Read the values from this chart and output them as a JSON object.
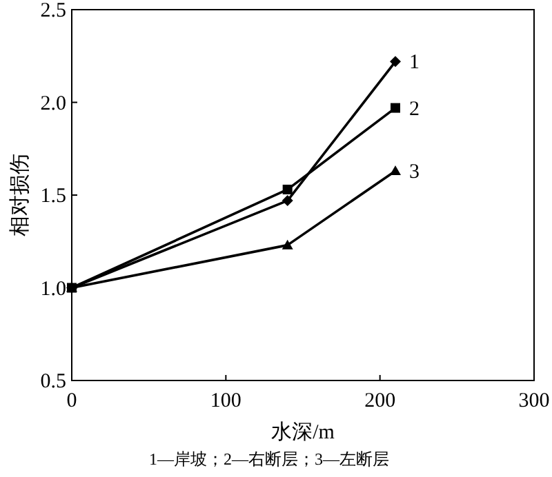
{
  "chart_data": {
    "type": "line",
    "xlabel": "水深/m",
    "ylabel": "相对损伤",
    "xlim": [
      0,
      300
    ],
    "xticks": [
      0,
      100,
      200,
      300
    ],
    "ylim": [
      0.5,
      2.5
    ],
    "yticks": [
      {
        "value": 0.5,
        "label": "0.5"
      },
      {
        "value": 1.0,
        "label": "1.0"
      },
      {
        "value": 1.5,
        "label": "1.5"
      },
      {
        "value": 2.0,
        "label": "2.0"
      },
      {
        "value": 2.5,
        "label": "2.5"
      }
    ],
    "grid": false,
    "line_style": "solid",
    "series": [
      {
        "name": "1",
        "color": "#000000",
        "marker": "diamond",
        "x": [
          0,
          140,
          210
        ],
        "values": [
          1.0,
          1.47,
          2.22
        ]
      },
      {
        "name": "2",
        "color": "#000000",
        "marker": "square",
        "x": [
          0,
          140,
          210
        ],
        "values": [
          1.0,
          1.53,
          1.97
        ]
      },
      {
        "name": "3",
        "color": "#000000",
        "marker": "triangle",
        "x": [
          0,
          140,
          210
        ],
        "values": [
          1.0,
          1.23,
          1.63
        ]
      }
    ],
    "annotations": [
      "1—岸坡；2—右断层；3—左断层"
    ]
  }
}
